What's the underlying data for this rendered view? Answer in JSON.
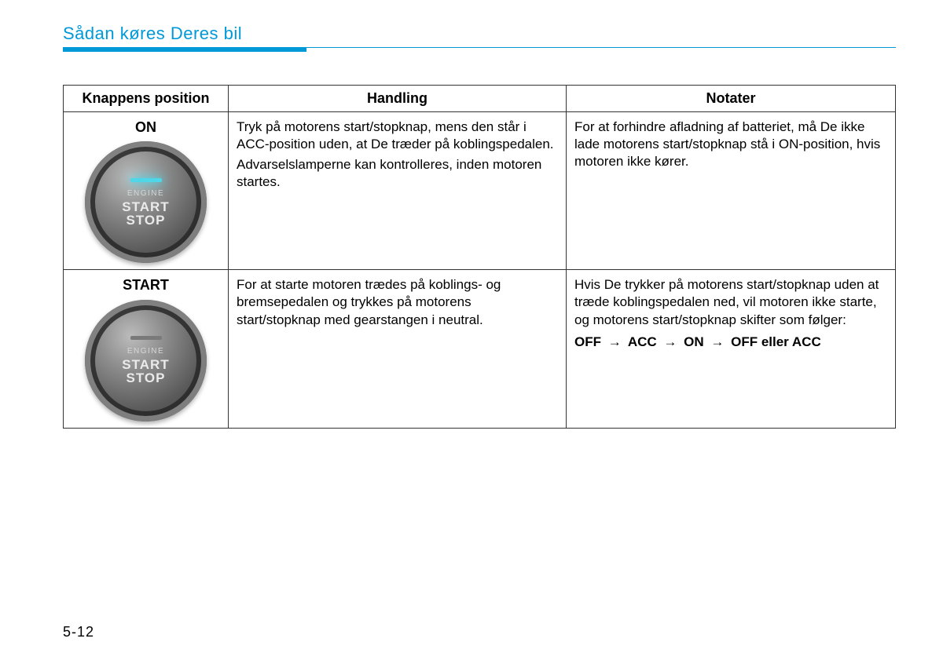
{
  "header": {
    "title": "Sådan køres Deres bil"
  },
  "table": {
    "columns": {
      "position": "Knappens position",
      "action": "Handling",
      "notes": "Notater"
    },
    "rows": [
      {
        "position_label": "ON",
        "button_state": "on",
        "button_text": {
          "engine": "ENGINE",
          "start": "START",
          "stop": "STOP"
        },
        "action_p1": "Tryk på motorens start/stopknap, mens den står i ACC-position uden, at De træder på koblingspedalen.",
        "action_p2": "Advarselslamperne kan kontrolleres, inden motoren startes.",
        "notes_p1": "For at forhindre afladning af batteriet, må De ikke lade motorens start/stopknap stå i ON-position, hvis motoren ikke kører."
      },
      {
        "position_label": "START",
        "button_state": "off",
        "button_text": {
          "engine": "ENGINE",
          "start": "START",
          "stop": "STOP"
        },
        "action_p1": "For at starte motoren trædes på koblings- og bremsepedalen og trykkes på motorens start/stopknap med gearstangen i neutral.",
        "notes_p1": "Hvis De trykker på motorens start/stopknap uden at træde koblingspedalen ned, vil motoren ikke starte, og motorens start/stopknap skifter som følger:",
        "sequence": {
          "s1": "OFF",
          "s2": "ACC",
          "s3": "ON",
          "s4": "OFF eller ACC"
        }
      }
    ]
  },
  "page_number": "5-12",
  "colors": {
    "accent": "#0099d8",
    "text": "#000000",
    "border": "#333333"
  }
}
